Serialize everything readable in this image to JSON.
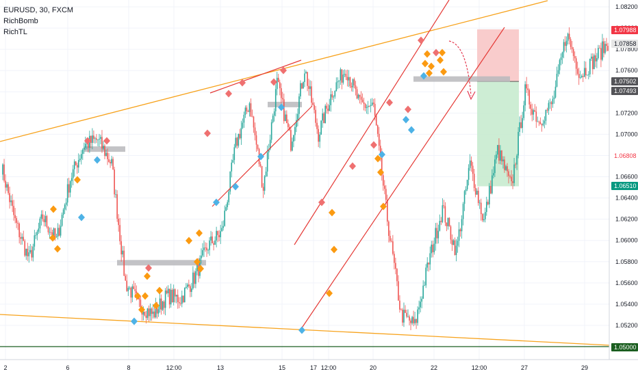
{
  "legend": {
    "symbol_line": "EURUSD, 30, FXCM",
    "indicators": [
      "RichBomb",
      "RichTL"
    ]
  },
  "colors": {
    "up": "#26a69a",
    "down": "#ef5350",
    "trend_orange": "#f7a21b",
    "channel_red": "#e53935",
    "support_green": "#1b5e20",
    "zone_gray": "#b9b9bc",
    "stop_zone": "#f8c6c6",
    "target_zone": "#c8ebcf",
    "marker_red": "#ef7070",
    "marker_orange": "#fb9a11",
    "marker_blue": "#4db2e6"
  },
  "chart_data": {
    "type": "candlestick",
    "symbol": "EURUSD",
    "timeframe": "30",
    "source": "FXCM",
    "ylim": [
      1.05,
      1.082
    ],
    "y_ticks": [
      1.082,
      1.08,
      1.078,
      1.076,
      1.074,
      1.072,
      1.07,
      1.068,
      1.066,
      1.064,
      1.062,
      1.06,
      1.058,
      1.056,
      1.054,
      1.052,
      1.05
    ],
    "x_ticks": [
      "2",
      "6",
      "8",
      "12:00",
      "13",
      "15",
      "17",
      "12:00",
      "20",
      "22",
      "12:00",
      "27",
      "29"
    ],
    "price_labels": [
      {
        "value": "1.07988",
        "kind": "stop"
      },
      {
        "value": "1.07858",
        "kind": "last"
      },
      {
        "value": "1.07502",
        "kind": "entry"
      },
      {
        "value": "1.07493",
        "kind": "entry"
      },
      {
        "value": "1.06808",
        "kind": "level"
      },
      {
        "value": "1.06510",
        "kind": "target"
      },
      {
        "value": "1.05000",
        "kind": "support"
      }
    ],
    "price_path_checkpoints": [
      1.067,
      1.0618,
      1.0582,
      1.0622,
      1.06,
      1.0658,
      1.069,
      1.0695,
      1.0672,
      1.056,
      1.054,
      1.053,
      1.0548,
      1.0545,
      1.0565,
      1.0595,
      1.0608,
      1.069,
      1.073,
      1.065,
      1.0748,
      1.0692,
      1.0762,
      1.07,
      1.074,
      1.0762,
      1.0728,
      1.0726,
      1.062,
      1.053,
      1.052,
      1.058,
      1.063,
      1.059,
      1.0672,
      1.0618,
      1.0685,
      1.065,
      1.074,
      1.0712,
      1.073,
      1.0795,
      1.0756,
      1.077,
      1.0786
    ],
    "trade_setup": {
      "entry": 1.07497,
      "stop": 1.07988,
      "target": 1.0651
    },
    "horizontal_levels": [
      1.05
    ],
    "zones": [
      1.0686,
      1.0579,
      1.0728,
      1.0752
    ]
  }
}
